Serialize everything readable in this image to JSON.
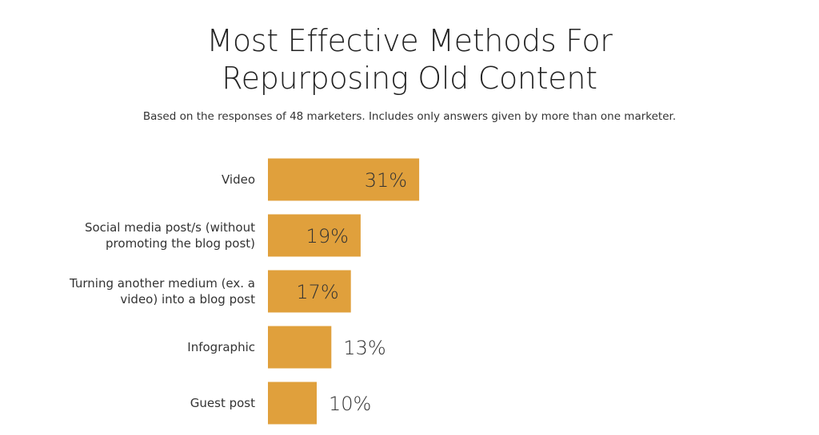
{
  "title_line1": "Most Effective Methods For",
  "title_line2": "Repurposing Old Content",
  "subtitle": "Based on the responses of 48 marketers. Includes only answers given by more than one marketer.",
  "chart_data": {
    "type": "bar",
    "orientation": "horizontal",
    "title": "Most Effective Methods For Repurposing Old Content",
    "subtitle": "Based on the responses of 48 marketers. Includes only answers given by more than one marketer.",
    "categories": [
      [
        "Video"
      ],
      [
        "Social media post/s (without",
        "promoting the blog post)"
      ],
      [
        "Turning another medium (ex. a",
        "video) into a blog post"
      ],
      [
        "Infographic"
      ],
      [
        "Guest post"
      ]
    ],
    "values": [
      31,
      19,
      17,
      13,
      10
    ],
    "value_labels": [
      "31%",
      "19%",
      "17%",
      "13%",
      "10%"
    ],
    "unit": "%",
    "xlim": [
      0,
      100
    ],
    "grid": false,
    "legend": "none",
    "bar_color": "#E0A03C",
    "label_color": "#333333"
  }
}
